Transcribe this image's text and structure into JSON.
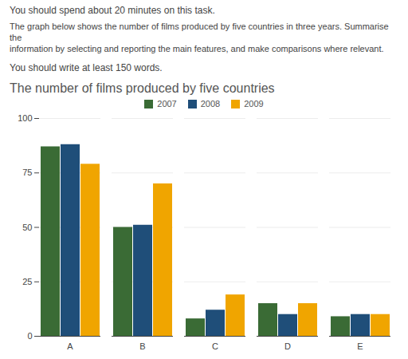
{
  "chart_data": {
    "type": "bar",
    "title": "The number of films produced by five countries",
    "annotations": [
      "You should spend about 20 minutes on this task.",
      "The graph below shows the number of films produced by five countries in three years. Summarise the",
      "information by selecting and reporting the main features, and make comparisons where relevant.",
      "You should write at least 150 words."
    ],
    "categories": [
      "A",
      "B",
      "C",
      "D",
      "E"
    ],
    "series": [
      {
        "name": "2007",
        "color": "#3a6b35",
        "values": [
          87,
          50,
          8,
          15,
          9
        ]
      },
      {
        "name": "2008",
        "color": "#1f4e79",
        "values": [
          88,
          51,
          12,
          10,
          10
        ]
      },
      {
        "name": "2009",
        "color": "#f0a500",
        "values": [
          79,
          70,
          19,
          15,
          10
        ]
      }
    ],
    "ylim": [
      0,
      100
    ],
    "yticks": [
      0,
      25,
      50,
      75,
      100
    ],
    "grid": true,
    "legend": "top"
  }
}
